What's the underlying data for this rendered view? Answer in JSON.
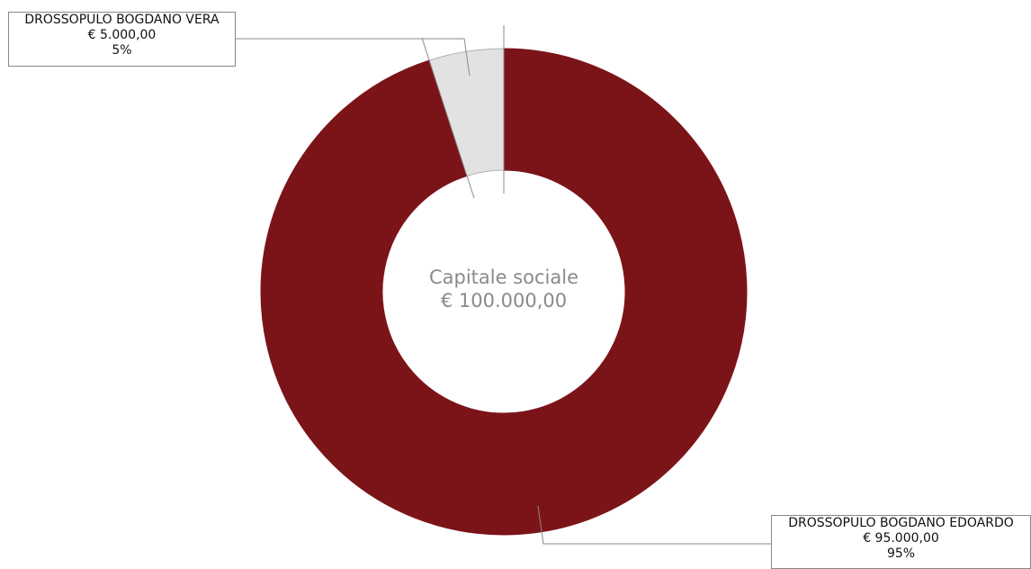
{
  "chart_data": {
    "type": "pie",
    "variant": "donut",
    "center_label": {
      "line1": "Capitale sociale",
      "line2": "€ 100.000,00"
    },
    "total": 100000,
    "slices": [
      {
        "name": "DROSSOPULO BOGDANO VERA",
        "amount_label": "€ 5.000,00",
        "percent_label": "5%",
        "value": 5000,
        "percent": 5,
        "color": "#e2e2e2"
      },
      {
        "name": "DROSSOPULO BOGDANO EDOARDO",
        "amount_label": "€ 95.000,00",
        "percent_label": "95%",
        "value": 95000,
        "percent": 95,
        "color": "#7b1419"
      }
    ]
  }
}
